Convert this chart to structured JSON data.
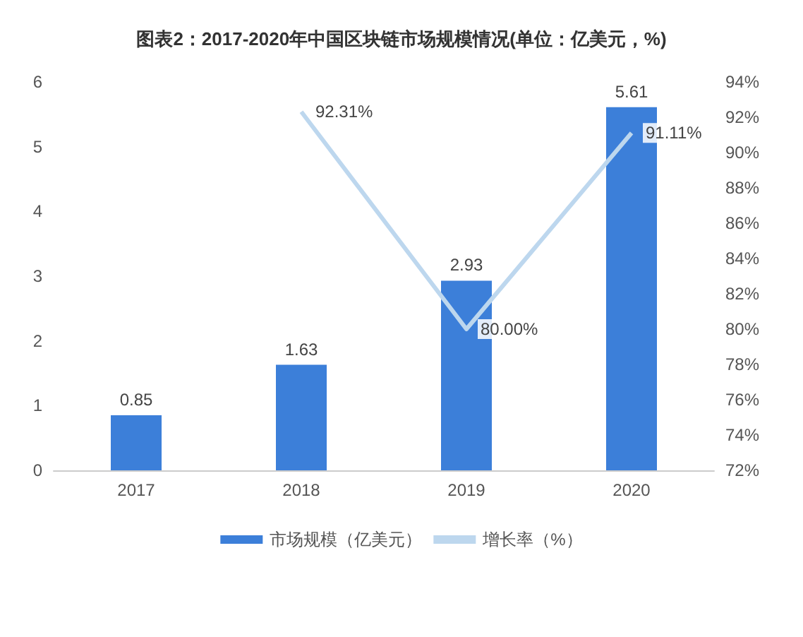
{
  "chart_data": {
    "type": "bar",
    "title": "图表2：2017-2020年中国区块链市场规模情况(单位：亿美元，%)",
    "categories": [
      "2017",
      "2018",
      "2019",
      "2020"
    ],
    "series": [
      {
        "name": "市场规模（亿美元）",
        "color": "#3c7fd9",
        "values": [
          0.85,
          1.63,
          2.93,
          5.61
        ],
        "data_labels": true
      },
      {
        "name": "增长率（%）",
        "type": "line",
        "axis": "y2",
        "color": "#bdd7ee",
        "values": [
          null,
          92.31,
          80.0,
          91.11
        ],
        "value_labels": [
          null,
          "92.31%",
          "80.00%",
          "91.11%"
        ],
        "marker": "none"
      }
    ],
    "ylim": [
      0,
      6
    ],
    "yticks": [
      0,
      1,
      2,
      3,
      4,
      5,
      6
    ],
    "y2lim": [
      72,
      94
    ],
    "y2ticks": [
      {
        "value": 72,
        "label": "72%"
      },
      {
        "value": 74,
        "label": "74%"
      },
      {
        "value": 76,
        "label": "76%"
      },
      {
        "value": 78,
        "label": "78%"
      },
      {
        "value": 80,
        "label": "80%"
      },
      {
        "value": 82,
        "label": "82%"
      },
      {
        "value": 84,
        "label": "84%"
      },
      {
        "value": 86,
        "label": "86%"
      },
      {
        "value": 88,
        "label": "88%"
      },
      {
        "value": 90,
        "label": "90%"
      },
      {
        "value": 92,
        "label": "92%"
      },
      {
        "value": 94,
        "label": "94%"
      }
    ],
    "grid": false,
    "legend": "bottom"
  }
}
